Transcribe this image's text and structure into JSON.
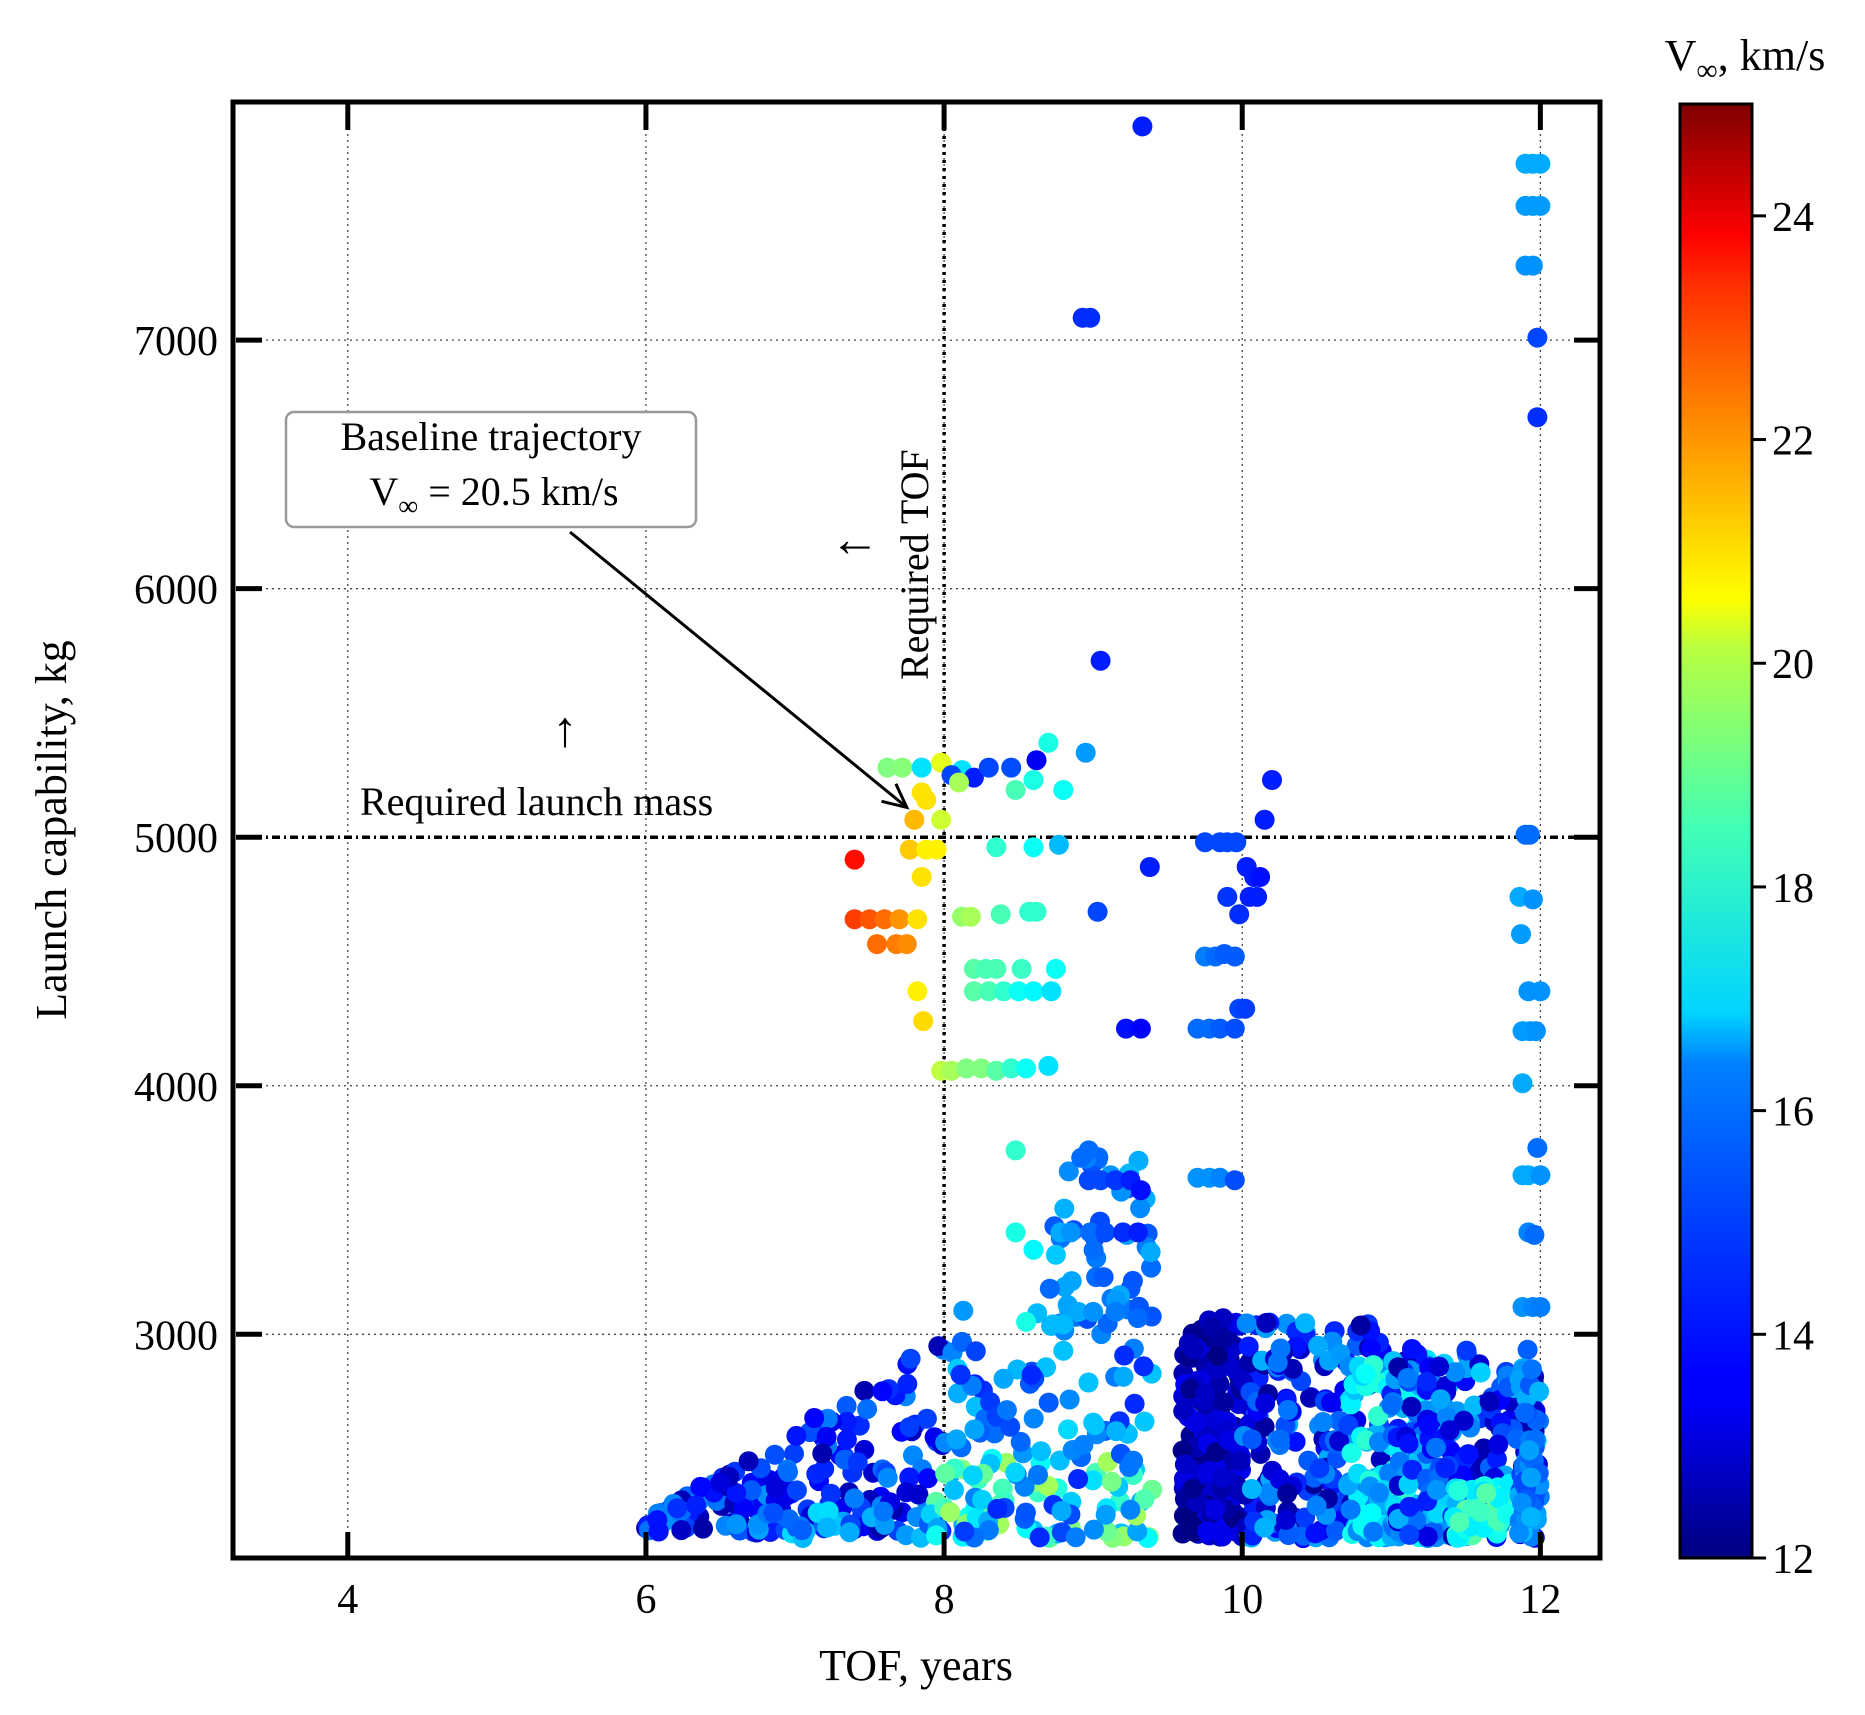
{
  "chart_data": {
    "type": "scatter",
    "title": "",
    "xlabel": "TOF, years",
    "ylabel": "Launch capability, kg",
    "xlim": [
      3.25,
      12.4
    ],
    "ylim": [
      2100,
      7950
    ],
    "x_ticks": [
      4,
      6,
      8,
      10,
      12
    ],
    "y_ticks": [
      3000,
      4000,
      5000,
      6000,
      7000
    ],
    "grid": true,
    "colorbar": {
      "title_main": "V",
      "title_sub": "∞",
      "title_rest": ", km/s",
      "range": [
        12,
        25
      ],
      "ticks": [
        12,
        14,
        16,
        18,
        20,
        22,
        24
      ],
      "colormap": "jet"
    },
    "reference_lines": [
      {
        "axis": "x",
        "value": 8,
        "label": "Required TOF",
        "arrow": "←"
      },
      {
        "axis": "y",
        "value": 5000,
        "label": "Required launch mass",
        "arrow": "↑"
      }
    ],
    "annotation": {
      "line1": "Baseline trajectory",
      "line2_main": "V",
      "line2_sub": "∞",
      "line2_rest": " = 20.5 km/s",
      "points_to": [
        7.75,
        5120
      ]
    },
    "clusters": [
      {
        "x": [
          6.0,
          8.0
        ],
        "y": [
          2200,
          3000
        ],
        "v": [
          12.5,
          15.5
        ],
        "n": 160,
        "seed": 11
      },
      {
        "x": [
          6.6,
          8.0
        ],
        "y": [
          2180,
          2300
        ],
        "v": [
          14.5,
          16.5
        ],
        "n": 30,
        "seed": 12
      },
      {
        "x": [
          7.9,
          9.4
        ],
        "y": [
          2180,
          2500
        ],
        "v": [
          15.5,
          19.0
        ],
        "n": 70,
        "seed": 13
      },
      {
        "x": [
          8.0,
          9.4
        ],
        "y": [
          2180,
          3100
        ],
        "v": [
          14.0,
          16.5
        ],
        "n": 90,
        "seed": 14
      },
      {
        "x": [
          8.7,
          9.4
        ],
        "y": [
          3000,
          3750
        ],
        "v": [
          14.5,
          16.0
        ],
        "n": 45,
        "seed": 15
      },
      {
        "x": [
          9.6,
          10.0
        ],
        "y": [
          2180,
          3100
        ],
        "v": [
          12.0,
          13.5
        ],
        "n": 200,
        "seed": 16
      },
      {
        "x": [
          10.0,
          11.0
        ],
        "y": [
          2180,
          3050
        ],
        "v": [
          12.3,
          16.0
        ],
        "n": 200,
        "seed": 17
      },
      {
        "x": [
          10.7,
          11.4
        ],
        "y": [
          2180,
          2900
        ],
        "v": [
          15.0,
          17.5
        ],
        "n": 120,
        "seed": 18
      },
      {
        "x": [
          11.0,
          12.0
        ],
        "y": [
          2180,
          2950
        ],
        "v": [
          12.5,
          16.5
        ],
        "n": 220,
        "seed": 19
      },
      {
        "x": [
          11.4,
          11.8
        ],
        "y": [
          2180,
          2400
        ],
        "v": [
          16.5,
          18.0
        ],
        "n": 40,
        "seed": 20
      },
      {
        "x": [
          11.85,
          12.0
        ],
        "y": [
          2200,
          2900
        ],
        "v": [
          14.5,
          16.0
        ],
        "n": 60,
        "seed": 21
      }
    ],
    "points": [
      [
        9.33,
        7860,
        14.0
      ],
      [
        8.93,
        7090,
        14.2
      ],
      [
        8.98,
        7090,
        14.2
      ],
      [
        11.95,
        7710,
        15.8
      ],
      [
        11.9,
        7710,
        15.8
      ],
      [
        12.0,
        7710,
        15.8
      ],
      [
        11.9,
        7540,
        15.6
      ],
      [
        11.95,
        7540,
        15.6
      ],
      [
        12.0,
        7540,
        15.6
      ],
      [
        11.9,
        7300,
        15.5
      ],
      [
        11.95,
        7300,
        15.5
      ],
      [
        11.98,
        7010,
        14.5
      ],
      [
        11.98,
        6690,
        14.2
      ],
      [
        9.05,
        5710,
        14.0
      ],
      [
        7.62,
        5280,
        18.5
      ],
      [
        7.72,
        5280,
        18.6
      ],
      [
        7.85,
        5280,
        16.5
      ],
      [
        7.98,
        5300,
        19.8
      ],
      [
        8.12,
        5270,
        16.5
      ],
      [
        8.05,
        5250,
        14.5
      ],
      [
        8.2,
        5240,
        14.0
      ],
      [
        8.3,
        5280,
        14.5
      ],
      [
        8.45,
        5280,
        14.6
      ],
      [
        8.62,
        5310,
        13.5
      ],
      [
        8.8,
        5190,
        17.0
      ],
      [
        8.48,
        5190,
        17.8
      ],
      [
        8.6,
        5230,
        17.2
      ],
      [
        8.7,
        5380,
        17.2
      ],
      [
        8.95,
        5340,
        15.6
      ],
      [
        8.1,
        5220,
        19.0
      ],
      [
        7.85,
        5180,
        20.5
      ],
      [
        7.88,
        5150,
        20.5
      ],
      [
        7.8,
        5070,
        21.0
      ],
      [
        7.98,
        5070,
        19.5
      ],
      [
        7.77,
        4950,
        20.8
      ],
      [
        7.88,
        4950,
        20.3
      ],
      [
        7.95,
        4950,
        20.3
      ],
      [
        7.85,
        4840,
        20.5
      ],
      [
        7.4,
        4910,
        23.2
      ],
      [
        7.4,
        4670,
        22.6
      ],
      [
        7.5,
        4670,
        22.3
      ],
      [
        7.6,
        4670,
        22.0
      ],
      [
        7.7,
        4670,
        21.5
      ],
      [
        7.82,
        4670,
        20.5
      ],
      [
        7.55,
        4570,
        22.0
      ],
      [
        7.68,
        4570,
        21.8
      ],
      [
        7.75,
        4570,
        21.6
      ],
      [
        7.82,
        4380,
        20.3
      ],
      [
        7.86,
        4260,
        20.6
      ],
      [
        8.12,
        4680,
        18.8
      ],
      [
        8.18,
        4680,
        19.0
      ],
      [
        8.38,
        4690,
        17.8
      ],
      [
        8.57,
        4700,
        17.5
      ],
      [
        8.62,
        4700,
        17.5
      ],
      [
        8.35,
        4960,
        17.5
      ],
      [
        8.6,
        4960,
        17.0
      ],
      [
        8.77,
        4970,
        16.0
      ],
      [
        9.03,
        4700,
        14.5
      ],
      [
        9.38,
        4880,
        14.0
      ],
      [
        9.75,
        4980,
        14.5
      ],
      [
        9.85,
        4980,
        14.5
      ],
      [
        9.9,
        4980,
        14.5
      ],
      [
        9.96,
        4980,
        14.5
      ],
      [
        10.03,
        4880,
        14.0
      ],
      [
        10.08,
        4840,
        14.0
      ],
      [
        10.12,
        4840,
        13.8
      ],
      [
        9.9,
        4760,
        14.3
      ],
      [
        10.05,
        4760,
        14.0
      ],
      [
        10.1,
        4760,
        14.0
      ],
      [
        9.98,
        4690,
        14.2
      ],
      [
        10.15,
        5070,
        14.0
      ],
      [
        10.2,
        5230,
        14.0
      ],
      [
        11.9,
        5010,
        15.0
      ],
      [
        11.93,
        5010,
        15.0
      ],
      [
        11.86,
        4760,
        15.8
      ],
      [
        11.95,
        4750,
        15.5
      ],
      [
        11.87,
        4610,
        15.6
      ],
      [
        11.92,
        4380,
        15.5
      ],
      [
        12.0,
        4380,
        15.5
      ],
      [
        11.88,
        4220,
        15.6
      ],
      [
        11.93,
        4220,
        15.6
      ],
      [
        11.97,
        4220,
        15.5
      ],
      [
        11.88,
        4010,
        15.8
      ],
      [
        8.2,
        4470,
        18.0
      ],
      [
        8.28,
        4470,
        17.8
      ],
      [
        8.35,
        4470,
        17.8
      ],
      [
        8.52,
        4470,
        17.6
      ],
      [
        8.75,
        4470,
        17.0
      ],
      [
        8.2,
        4380,
        18.0
      ],
      [
        8.3,
        4380,
        17.8
      ],
      [
        8.4,
        4380,
        17.5
      ],
      [
        8.5,
        4380,
        17.0
      ],
      [
        8.6,
        4380,
        16.8
      ],
      [
        8.72,
        4380,
        16.5
      ],
      [
        7.98,
        4060,
        19.3
      ],
      [
        8.05,
        4060,
        19.0
      ],
      [
        8.15,
        4070,
        18.5
      ],
      [
        8.25,
        4070,
        18.5
      ],
      [
        8.35,
        4060,
        18.0
      ],
      [
        8.45,
        4070,
        17.5
      ],
      [
        8.55,
        4070,
        17.0
      ],
      [
        8.7,
        4080,
        16.5
      ],
      [
        9.75,
        4520,
        15.2
      ],
      [
        9.82,
        4520,
        15.0
      ],
      [
        9.88,
        4530,
        14.8
      ],
      [
        9.95,
        4520,
        14.8
      ],
      [
        9.7,
        4230,
        15.0
      ],
      [
        9.78,
        4230,
        15.0
      ],
      [
        9.85,
        4230,
        14.8
      ],
      [
        9.95,
        4230,
        14.6
      ],
      [
        9.98,
        4310,
        14.5
      ],
      [
        10.02,
        4310,
        14.4
      ],
      [
        9.22,
        4230,
        13.8
      ],
      [
        9.32,
        4230,
        13.6
      ],
      [
        8.48,
        3740,
        17.5
      ],
      [
        8.92,
        3710,
        15.0
      ],
      [
        8.97,
        3740,
        15.0
      ],
      [
        8.97,
        3620,
        14.5
      ],
      [
        9.05,
        3620,
        14.5
      ],
      [
        9.15,
        3620,
        14.3
      ],
      [
        9.25,
        3620,
        14.0
      ],
      [
        9.32,
        3580,
        13.8
      ],
      [
        9.7,
        3630,
        15.5
      ],
      [
        9.78,
        3630,
        15.5
      ],
      [
        9.85,
        3630,
        15.3
      ],
      [
        9.95,
        3620,
        14.6
      ],
      [
        11.88,
        3640,
        15.8
      ],
      [
        11.92,
        3640,
        15.8
      ],
      [
        12.0,
        3640,
        15.5
      ],
      [
        11.98,
        3750,
        15.0
      ],
      [
        11.92,
        3410,
        15.3
      ],
      [
        11.96,
        3400,
        15.0
      ],
      [
        8.48,
        3410,
        17.2
      ],
      [
        8.6,
        3340,
        16.8
      ],
      [
        8.75,
        3320,
        16.2
      ],
      [
        8.78,
        3410,
        15.8
      ],
      [
        8.85,
        3410,
        15.5
      ],
      [
        8.98,
        3410,
        15.0
      ],
      [
        9.08,
        3410,
        14.6
      ],
      [
        9.2,
        3410,
        14.2
      ],
      [
        9.3,
        3410,
        14.0
      ],
      [
        9.02,
        3230,
        15.0
      ],
      [
        9.07,
        3230,
        14.8
      ],
      [
        11.88,
        3110,
        15.5
      ],
      [
        11.95,
        3110,
        15.3
      ],
      [
        12.0,
        3110,
        15.2
      ],
      [
        8.55,
        3050,
        17.2
      ],
      [
        8.73,
        3040,
        16.0
      ],
      [
        8.8,
        3040,
        16.0
      ],
      [
        8.9,
        3090,
        15.8
      ],
      [
        9.0,
        3090,
        15.5
      ],
      [
        9.15,
        3090,
        15.2
      ]
    ]
  }
}
